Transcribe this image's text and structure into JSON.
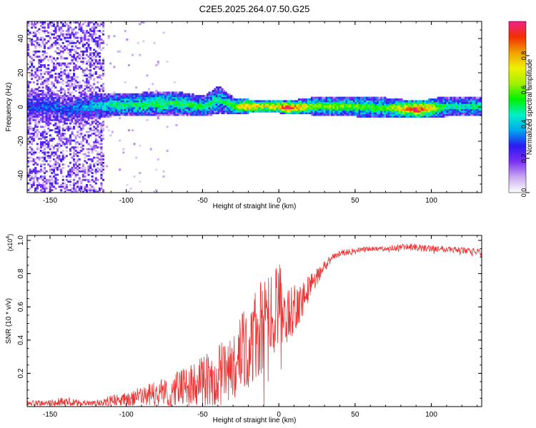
{
  "figure_title": "C2E5.2025.264.07.50.G25",
  "colors": {
    "snr_line": "#ee3333",
    "axis": "#000000",
    "background": "#ffffff"
  },
  "chart_data": [
    {
      "type": "heatmap",
      "title": "C2E5.2025.264.07.50.G25",
      "xlabel": "Height of straight line (km)",
      "ylabel": "Frequency (Hz)",
      "xlim": [
        -165,
        133
      ],
      "ylim": [
        -50,
        50
      ],
      "xticks": [
        -150,
        -100,
        -50,
        0,
        50,
        100
      ],
      "xtick_labels": [
        "-150",
        "-100",
        "-50",
        "0",
        "50",
        "100"
      ],
      "yticks": [
        -40,
        -20,
        0,
        20,
        40
      ],
      "ytick_labels": [
        "-40",
        "-20",
        "0",
        "20",
        "40"
      ],
      "colorbar": {
        "label": "Normalized spectral amplitude",
        "range": [
          0,
          1
        ],
        "ticks": [
          0.0,
          0.2,
          0.4,
          0.6,
          0.8
        ],
        "tick_labels": [
          "0.0",
          "0.2",
          "0.4",
          "0.6",
          "0.8"
        ],
        "colormap": [
          "#ffffff",
          "#c8a8f0",
          "#7a30f0",
          "#2a1af0",
          "#00a8f0",
          "#00f0c8",
          "#00f000",
          "#a0f000",
          "#f0f000",
          "#f0a000",
          "#f03000",
          "#f0208a"
        ]
      },
      "band_profile": [
        {
          "height_km": -160,
          "center_hz": 0,
          "width_hz": 10,
          "amplitude": 0.25
        },
        {
          "height_km": -150,
          "center_hz": 0,
          "width_hz": 8,
          "amplitude": 0.3
        },
        {
          "height_km": -140,
          "center_hz": -2,
          "width_hz": 8,
          "amplitude": 0.28
        },
        {
          "height_km": -125,
          "center_hz": 0,
          "width_hz": 8,
          "amplitude": 0.35
        },
        {
          "height_km": -110,
          "center_hz": 1,
          "width_hz": 7,
          "amplitude": 0.45
        },
        {
          "height_km": -90,
          "center_hz": 1,
          "width_hz": 7,
          "amplitude": 0.5
        },
        {
          "height_km": -70,
          "center_hz": 2,
          "width_hz": 7,
          "amplitude": 0.5
        },
        {
          "height_km": -50,
          "center_hz": 0,
          "width_hz": 6,
          "amplitude": 0.5
        },
        {
          "height_km": -40,
          "center_hz": 4,
          "width_hz": 8,
          "amplitude": 0.45
        },
        {
          "height_km": -30,
          "center_hz": 0,
          "width_hz": 5,
          "amplitude": 0.55
        },
        {
          "height_km": -20,
          "center_hz": 0,
          "width_hz": 4,
          "amplitude": 0.85
        },
        {
          "height_km": -10,
          "center_hz": 0,
          "width_hz": 4,
          "amplitude": 0.7
        },
        {
          "height_km": 0,
          "center_hz": 0,
          "width_hz": 4,
          "amplitude": 0.8
        },
        {
          "height_km": 5,
          "center_hz": -1,
          "width_hz": 4,
          "amplitude": 0.95
        },
        {
          "height_km": 20,
          "center_hz": 0,
          "width_hz": 5,
          "amplitude": 0.6
        },
        {
          "height_km": 50,
          "center_hz": 0,
          "width_hz": 6,
          "amplitude": 0.55
        },
        {
          "height_km": 70,
          "center_hz": -1,
          "width_hz": 6,
          "amplitude": 0.55
        },
        {
          "height_km": 90,
          "center_hz": -2,
          "width_hz": 5,
          "amplitude": 0.95
        },
        {
          "height_km": 110,
          "center_hz": 0,
          "width_hz": 6,
          "amplitude": 0.45
        },
        {
          "height_km": 130,
          "center_hz": 0,
          "width_hz": 6,
          "amplitude": 0.45
        }
      ],
      "noise_region_km": [
        -165,
        -115
      ]
    },
    {
      "type": "line",
      "title": "",
      "xlabel": "Height of straight line (km)",
      "ylabel": "SNR (10 * v/v)",
      "y_multiplier_label": "(x10",
      "y_multiplier_exp": "4",
      "y_multiplier_close": ")",
      "xlim": [
        -165,
        133
      ],
      "ylim": [
        0,
        1.03
      ],
      "xticks": [
        -150,
        -100,
        -50,
        0,
        50,
        100
      ],
      "xtick_labels": [
        "-150",
        "-100",
        "-50",
        "0",
        "50",
        "100"
      ],
      "yticks": [
        0.2,
        0.4,
        0.6,
        0.8,
        1.0
      ],
      "ytick_labels": [
        "0.2",
        "0.4",
        "0.6",
        "0.8",
        "1.0"
      ],
      "series": [
        {
          "name": "SNR",
          "x": [
            -165,
            -150,
            -140,
            -130,
            -120,
            -110,
            -100,
            -90,
            -80,
            -70,
            -60,
            -50,
            -40,
            -30,
            -25,
            -20,
            -15,
            -10,
            -5,
            0,
            5,
            10,
            15,
            20,
            25,
            30,
            35,
            40,
            50,
            60,
            70,
            80,
            90,
            100,
            110,
            120,
            133
          ],
          "values": [
            0.02,
            0.02,
            0.03,
            0.02,
            0.02,
            0.03,
            0.04,
            0.06,
            0.08,
            0.1,
            0.13,
            0.16,
            0.2,
            0.25,
            0.3,
            0.35,
            0.42,
            0.48,
            0.55,
            0.62,
            0.55,
            0.6,
            0.65,
            0.72,
            0.78,
            0.85,
            0.9,
            0.92,
            0.94,
            0.95,
            0.95,
            0.96,
            0.96,
            0.95,
            0.95,
            0.94,
            0.93
          ],
          "noise_amp": [
            0.02,
            0.02,
            0.03,
            0.02,
            0.02,
            0.04,
            0.05,
            0.06,
            0.08,
            0.1,
            0.12,
            0.14,
            0.18,
            0.22,
            0.25,
            0.28,
            0.3,
            0.3,
            0.28,
            0.25,
            0.2,
            0.16,
            0.12,
            0.08,
            0.05,
            0.03,
            0.02,
            0.02,
            0.015,
            0.015,
            0.015,
            0.02,
            0.02,
            0.02,
            0.02,
            0.02,
            0.02
          ]
        }
      ]
    }
  ]
}
